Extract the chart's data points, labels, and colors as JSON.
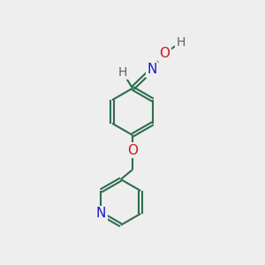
{
  "bg_color": "#eeeeee",
  "bond_color": "#2d6e4e",
  "N_color": "#1a1acc",
  "O_color": "#cc1a1a",
  "H_color": "#606060",
  "line_width": 1.5,
  "font_size": 10,
  "fig_size": [
    3.0,
    3.0
  ],
  "dpi": 100,
  "xlim": [
    0,
    10
  ],
  "ylim": [
    0,
    10
  ]
}
